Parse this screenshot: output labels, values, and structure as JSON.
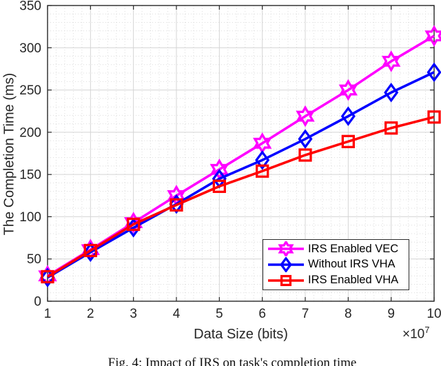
{
  "figure": {
    "caption": "Fig. 4: Impact of IRS on task's completion time"
  },
  "chart_data": {
    "type": "line",
    "title": "",
    "xlabel": "Data Size (bits)",
    "ylabel": "The Completion Time (ms)",
    "x_axis_exponent": {
      "base": "×10",
      "power": "7"
    },
    "xlim": [
      1,
      10
    ],
    "ylim": [
      0,
      350
    ],
    "x_ticks": [
      1,
      2,
      3,
      4,
      5,
      6,
      7,
      8,
      9,
      10
    ],
    "y_ticks": [
      0,
      50,
      100,
      150,
      200,
      250,
      300,
      350
    ],
    "x_minor_step": 0.2,
    "y_minor_step": 10,
    "grid": true,
    "minor_grid": true,
    "legend_position": "inside-lower-right",
    "axis_color": "#262626",
    "grid_color": "#d4d4d4",
    "minor_grid_color": "#dcdcdc",
    "x": [
      1,
      2,
      3,
      4,
      5,
      6,
      7,
      8,
      9,
      10
    ],
    "series": [
      {
        "name": "IRS Enabled VEC",
        "color": "#ff00ff",
        "marker": "hexagram",
        "values": [
          30,
          61,
          93,
          125,
          156,
          187,
          219,
          250,
          284,
          314
        ]
      },
      {
        "name": "Without IRS VHA",
        "color": "#0000ff",
        "marker": "diamond",
        "values": [
          28,
          58,
          87,
          115,
          145,
          167,
          192,
          219,
          247,
          271
        ]
      },
      {
        "name": "IRS Enabled VHA",
        "color": "#ff0000",
        "marker": "square",
        "values": [
          29,
          60,
          91,
          114,
          136,
          154,
          173,
          189,
          205,
          218
        ]
      }
    ]
  }
}
